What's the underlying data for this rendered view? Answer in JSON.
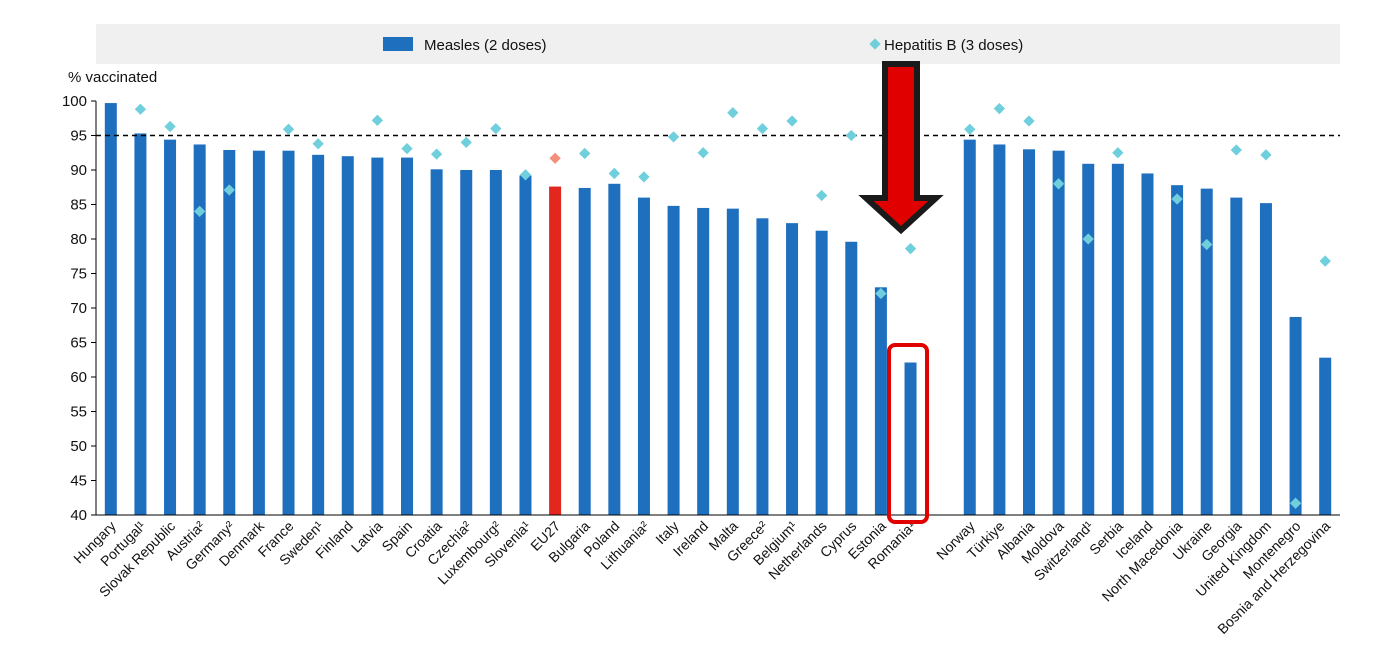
{
  "chart_data": {
    "type": "bar",
    "ylabel": "% vaccinated",
    "ylim": [
      40,
      100
    ],
    "yticks": [
      40,
      45,
      50,
      55,
      60,
      65,
      70,
      75,
      80,
      85,
      90,
      95,
      100
    ],
    "reference_line": {
      "value": 95,
      "style": "dashed"
    },
    "legend": {
      "placement": "top",
      "entries": [
        "Measles (2 doses)",
        "Hepatitis B (3 doses)"
      ]
    },
    "categories": [
      "Hungary",
      "Portugal¹",
      "Slovak Republic",
      "Austria²",
      "Germany²",
      "Denmark",
      "France",
      "Sweden¹",
      "Finland",
      "Latvia",
      "Spain",
      "Croatia",
      "Czechia²",
      "Luxembourg²",
      "Slovenia¹",
      "EU27",
      "Bulgaria",
      "Poland",
      "Lithuania²",
      "Italy",
      "Ireland",
      "Malta",
      "Greece²",
      "Belgium¹",
      "Netherlands",
      "Cyprus",
      "Estonia",
      "Romania¹",
      "",
      "Norway",
      "Türkiye",
      "Albania",
      "Moldova",
      "Switzerland¹",
      "Serbia",
      "Iceland",
      "North Macedonia",
      "Ukraine",
      "Georgia",
      "United Kingdom",
      "Montenegro",
      "Bosnia and Herzegovina"
    ],
    "series": [
      {
        "name": "Measles (2 doses)",
        "type": "bar",
        "values": [
          99.7,
          95.3,
          94.4,
          93.7,
          92.9,
          92.8,
          92.8,
          92.2,
          92.0,
          91.8,
          91.8,
          90.1,
          90.0,
          90.0,
          89.2,
          87.6,
          87.4,
          88.0,
          86.0,
          84.8,
          84.5,
          84.4,
          83.0,
          82.3,
          81.2,
          79.6,
          73.0,
          62.1,
          null,
          94.4,
          93.7,
          93.0,
          92.8,
          90.9,
          90.9,
          89.5,
          87.8,
          87.3,
          86.0,
          85.2,
          68.7,
          62.8
        ]
      },
      {
        "name": "Hepatitis B (3 doses)",
        "type": "scatter",
        "values": [
          null,
          98.8,
          96.3,
          84.0,
          87.1,
          null,
          95.9,
          93.8,
          null,
          97.2,
          93.1,
          92.3,
          94.0,
          96.0,
          89.3,
          91.7,
          92.4,
          89.5,
          89.0,
          94.8,
          92.5,
          98.3,
          96.0,
          97.1,
          86.3,
          95.0,
          72.1,
          78.6,
          null,
          95.9,
          98.9,
          97.1,
          88.0,
          80.0,
          92.5,
          null,
          85.8,
          79.2,
          92.9,
          92.2,
          41.7,
          76.8
        ]
      }
    ],
    "highlight_category": "EU27",
    "colors": {
      "measles": "#1f6fbf",
      "hepb": "#6fcfdc",
      "eu_bar": "#e3261e",
      "eu_marker": "#f4907a",
      "annotation": "#e00000",
      "legend_bg": "#f0f0f0"
    },
    "annotations": [
      {
        "type": "arrow",
        "target": "Romania¹",
        "color": "red"
      },
      {
        "type": "box",
        "target": "Romania¹",
        "color": "red"
      }
    ]
  }
}
